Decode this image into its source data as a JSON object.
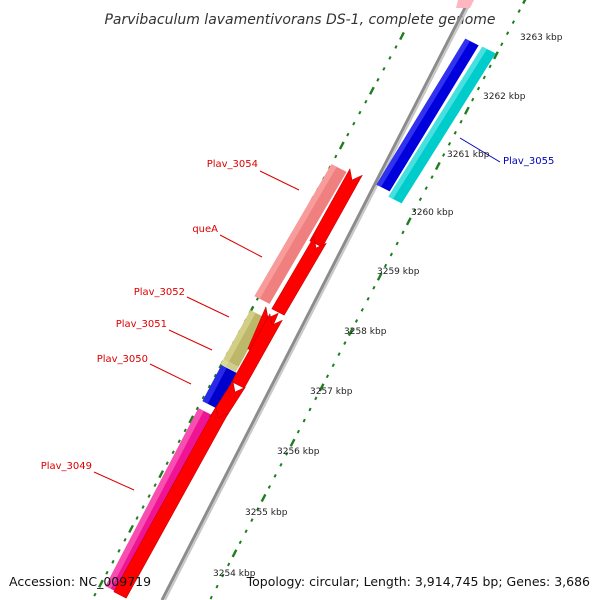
{
  "title": "Parvibaculum lavamentivorans DS-1, complete genome",
  "accession": "Accession: NC_009719",
  "topology": "Topology: circular; Length: 3,914,745 bp; Genes: 3,686",
  "colors": {
    "backbone": "#8c8c8c",
    "tick": "#1e7d1e",
    "cds_forward": "#ff0000",
    "label_red": "#dd0000",
    "label_blue": "#0000bb"
  },
  "kbp_marks": [
    "3254 kbp",
    "3255 kbp",
    "3256 kbp",
    "3257 kbp",
    "3258 kbp",
    "3259 kbp",
    "3260 kbp",
    "3261 kbp",
    "3262 kbp",
    "3263 kbp"
  ],
  "gene_labels": [
    {
      "id": "plav-3054",
      "text": "Plav_3054",
      "color": "#dd0000"
    },
    {
      "id": "quea",
      "text": "queA",
      "color": "#dd0000"
    },
    {
      "id": "plav-3052",
      "text": "Plav_3052",
      "color": "#dd0000"
    },
    {
      "id": "plav-3051",
      "text": "Plav_3051",
      "color": "#dd0000"
    },
    {
      "id": "plav-3050",
      "text": "Plav_3050",
      "color": "#dd0000"
    },
    {
      "id": "plav-3049",
      "text": "Plav_3049",
      "color": "#dd0000"
    },
    {
      "id": "plav-3055",
      "text": "Plav_3055",
      "color": "#0000bb"
    }
  ]
}
